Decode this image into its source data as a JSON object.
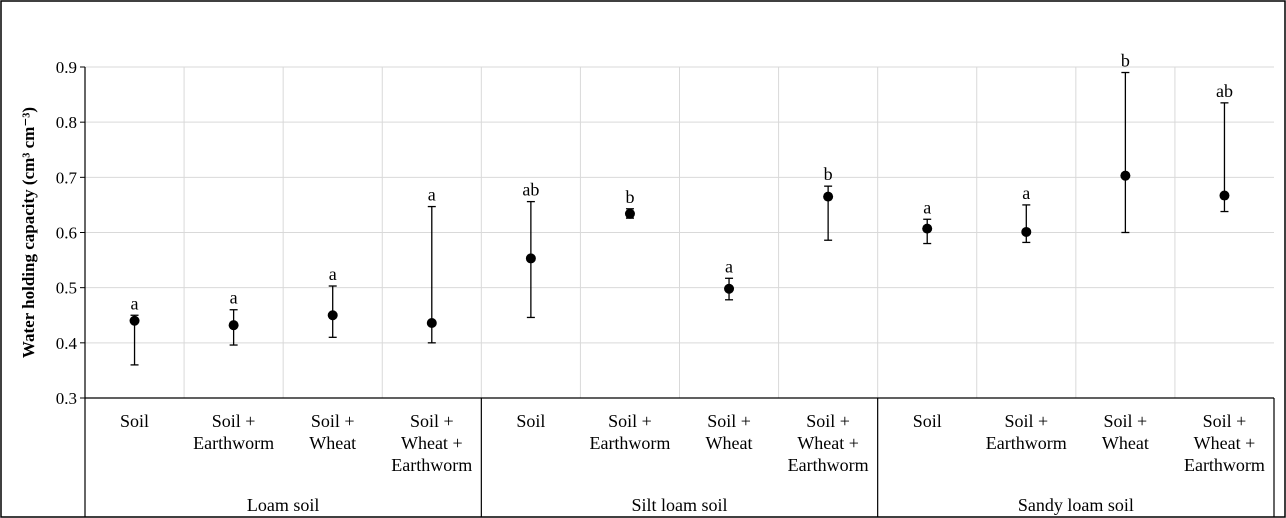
{
  "chart_data": {
    "type": "scatter",
    "ylabel": "Water holding capacity (cm³ cm⁻³)",
    "ylim": [
      0.3,
      0.9
    ],
    "yticks": [
      "0.3",
      "0.4",
      "0.5",
      "0.6",
      "0.7",
      "0.8",
      "0.9"
    ],
    "grid": true,
    "error_bars": true,
    "groups": [
      {
        "name": "Loam soil",
        "items": [
          {
            "label": [
              "Soil"
            ],
            "value": 0.44,
            "lower": 0.36,
            "upper": 0.45,
            "letter": "a"
          },
          {
            "label": [
              "Soil +",
              "Earthworm"
            ],
            "value": 0.432,
            "lower": 0.396,
            "upper": 0.46,
            "letter": "a"
          },
          {
            "label": [
              "Soil +",
              "Wheat"
            ],
            "value": 0.45,
            "lower": 0.41,
            "upper": 0.503,
            "letter": "a"
          },
          {
            "label": [
              "Soil +",
              "Wheat +",
              "Earthworm"
            ],
            "value": 0.436,
            "lower": 0.4,
            "upper": 0.647,
            "letter": "a"
          }
        ]
      },
      {
        "name": "Silt loam soil",
        "items": [
          {
            "label": [
              "Soil"
            ],
            "value": 0.553,
            "lower": 0.446,
            "upper": 0.656,
            "letter": "ab"
          },
          {
            "label": [
              "Soil +",
              "Earthworm"
            ],
            "value": 0.634,
            "lower": 0.626,
            "upper": 0.643,
            "letter": "b"
          },
          {
            "label": [
              "Soil +",
              "Wheat"
            ],
            "value": 0.498,
            "lower": 0.478,
            "upper": 0.517,
            "letter": "a"
          },
          {
            "label": [
              "Soil +",
              "Wheat +",
              "Earthworm"
            ],
            "value": 0.665,
            "lower": 0.586,
            "upper": 0.684,
            "letter": "b"
          }
        ]
      },
      {
        "name": "Sandy loam soil",
        "items": [
          {
            "label": [
              "Soil"
            ],
            "value": 0.607,
            "lower": 0.58,
            "upper": 0.624,
            "letter": "a"
          },
          {
            "label": [
              "Soil +",
              "Earthworm"
            ],
            "value": 0.601,
            "lower": 0.582,
            "upper": 0.65,
            "letter": "a"
          },
          {
            "label": [
              "Soil +",
              "Wheat"
            ],
            "value": 0.703,
            "lower": 0.6,
            "upper": 0.89,
            "letter": "b"
          },
          {
            "label": [
              "Soil +",
              "Wheat +",
              "Earthworm"
            ],
            "value": 0.667,
            "lower": 0.638,
            "upper": 0.835,
            "letter": "ab"
          }
        ]
      }
    ]
  }
}
